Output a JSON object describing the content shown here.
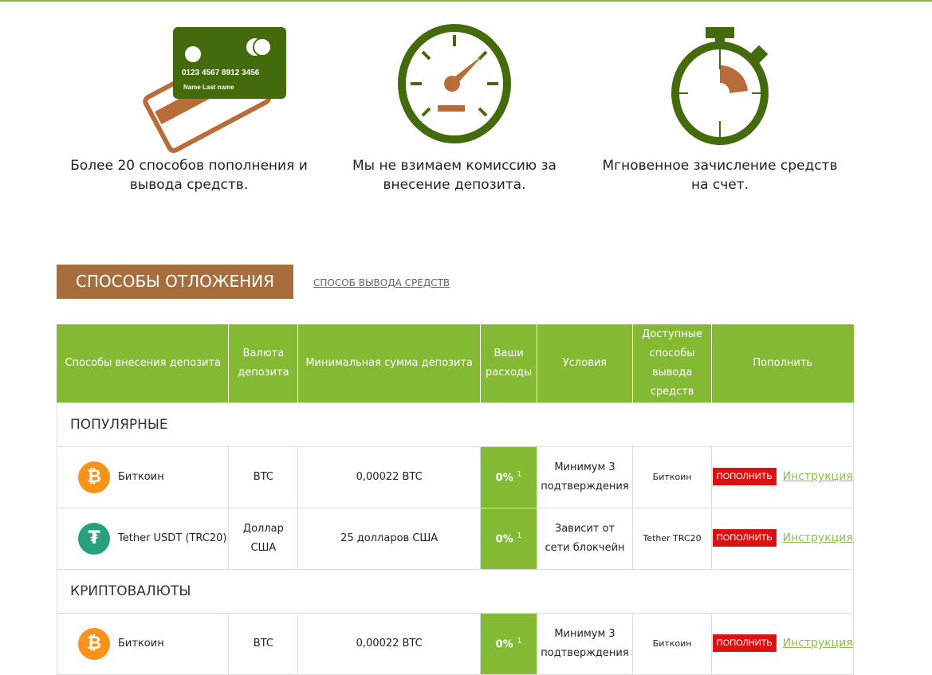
{
  "features": [
    {
      "icon": "credit-cards-icon",
      "card_number": "0123  4567  8912  3456",
      "card_name": "Name  Last name",
      "text": "Более 20 способов пополнения и вывода средств."
    },
    {
      "icon": "speedometer-icon",
      "text": "Мы не взимаем комиссию за внесение депозита."
    },
    {
      "icon": "stopwatch-icon",
      "text": "Мгновенное зачисление средств на счет."
    }
  ],
  "tabs": {
    "active": "СПОСОБЫ ОТЛОЖЕНИЯ",
    "other": "СПОСОБ ВЫВОДА СРЕДСТВ"
  },
  "table": {
    "headers": [
      "Способы внесения депозита",
      "Валюта депозита",
      "Минимальная сумма депозита",
      "Ваши расходы",
      "Условия",
      "Доступные способы вывода средств",
      "Пополнить"
    ],
    "sections": [
      {
        "title": "ПОПУЛЯРНЫЕ",
        "rows": [
          {
            "icon": "bitcoin-icon",
            "method": "Биткоин",
            "currency": "BTC",
            "min": "0,00022 BTC",
            "fee": "0%",
            "note": "1",
            "conditions": "Минимум 3 подтверждения",
            "withdraw": "Биткоин",
            "button": "ПОПОЛНИТЬ",
            "link": "Инструкция"
          },
          {
            "icon": "tether-icon",
            "method": "Tether USDT (TRC20)",
            "currency": "Доллар США",
            "min": "25 долларов США",
            "fee": "0%",
            "note": "1",
            "conditions": "Зависит от сети блокчейн",
            "withdraw": "Tether TRC20",
            "button": "ПОПОЛНИТЬ",
            "link": "Инструкция"
          }
        ]
      },
      {
        "title": "КРИПТОВАЛЮТЫ",
        "rows": [
          {
            "icon": "bitcoin-icon",
            "method": "Биткоин",
            "currency": "BTC",
            "min": "0,00022 BTC",
            "fee": "0%",
            "note": "1",
            "conditions": "Минимум 3 подтверждения",
            "withdraw": "Биткоин",
            "button": "ПОПОЛНИТЬ",
            "link": "Инструкция"
          }
        ]
      }
    ]
  },
  "colors": {
    "green": "#84b933",
    "dark_green": "#436b0b",
    "brown": "#a86d3d",
    "red": "#dd1111",
    "bitcoin": "#f7931a",
    "tether": "#26a17b"
  }
}
